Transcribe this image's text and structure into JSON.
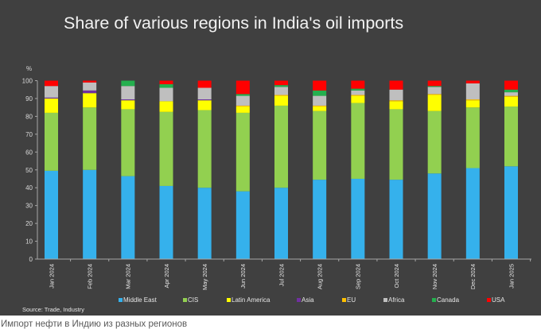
{
  "caption": "Импорт нефти в Индию из разных регионов",
  "source": "Source: Trade, Industry",
  "colors": {
    "panel_bg": "#404040",
    "axis": "#a6a6a6",
    "Middle East": "#35b1ec",
    "CIS": "#92d050",
    "Latin America": "#ffff00",
    "Asia": "#7030a0",
    "EU": "#ffc000",
    "Africa": "#bfbfbf",
    "Canada": "#24b04e",
    "USA": "#ff0000"
  },
  "chart_data": {
    "type": "bar",
    "stacked": true,
    "title": "Share of various regions in India's oil imports",
    "ylabel": "%",
    "xlabel": "",
    "ylim": [
      0,
      100
    ],
    "yticks": [
      "0",
      "10",
      "20",
      "30",
      "40",
      "50",
      "60",
      "70",
      "80",
      "90",
      "100"
    ],
    "grid": false,
    "legend_position": "bottom",
    "categories": [
      "Jan 2024",
      "Feb 2024",
      "Mar 2024",
      "Apr 2024",
      "May 2024",
      "Jun 2024",
      "Jul 2024",
      "Aug 2024",
      "Sep 2024",
      "Oct 2024",
      "Nov 2024",
      "Dec 2024",
      "Jan 2025"
    ],
    "series": [
      {
        "name": "Middle East",
        "values": [
          49.5,
          50,
          46.5,
          41,
          40,
          38,
          40,
          44.5,
          45,
          44.5,
          48,
          51,
          52
        ]
      },
      {
        "name": "CIS",
        "values": [
          32.5,
          35,
          37.5,
          41.5,
          43.5,
          44,
          46,
          38.5,
          42.5,
          39.5,
          35,
          34,
          33.5
        ]
      },
      {
        "name": "Latin America",
        "values": [
          8,
          8,
          5,
          6,
          5.5,
          3.5,
          5.5,
          2.5,
          4,
          4.5,
          9,
          4,
          5.5
        ]
      },
      {
        "name": "Asia",
        "values": [
          0.5,
          1.5,
          0.5,
          0,
          0.5,
          0,
          0,
          0,
          0,
          0,
          0,
          0,
          0
        ]
      },
      {
        "name": "EU",
        "values": [
          0,
          0,
          0,
          0,
          0,
          0.5,
          0.5,
          0.5,
          0.5,
          0.5,
          0.5,
          0.5,
          0.5
        ]
      },
      {
        "name": "Africa",
        "values": [
          6.5,
          4.5,
          7.5,
          7.5,
          6.5,
          5.5,
          4.5,
          5.5,
          2.5,
          6,
          4,
          9,
          2
        ]
      },
      {
        "name": "Canada",
        "values": [
          0,
          0,
          3,
          2,
          0,
          1,
          1,
          3,
          1,
          0,
          0.5,
          0,
          1.5
        ]
      },
      {
        "name": "USA",
        "values": [
          3,
          1,
          0,
          2,
          4,
          7.5,
          2.5,
          5.5,
          4.5,
          5,
          3,
          1.5,
          5
        ]
      }
    ]
  }
}
